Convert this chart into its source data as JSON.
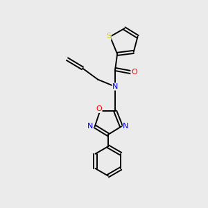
{
  "background_color": "#ebebeb",
  "bond_color": "#000000",
  "atom_colors": {
    "S": "#cccc00",
    "N": "#0000ff",
    "O": "#ff0000",
    "C": "#000000"
  },
  "figsize": [
    3.0,
    3.0
  ],
  "dpi": 100
}
